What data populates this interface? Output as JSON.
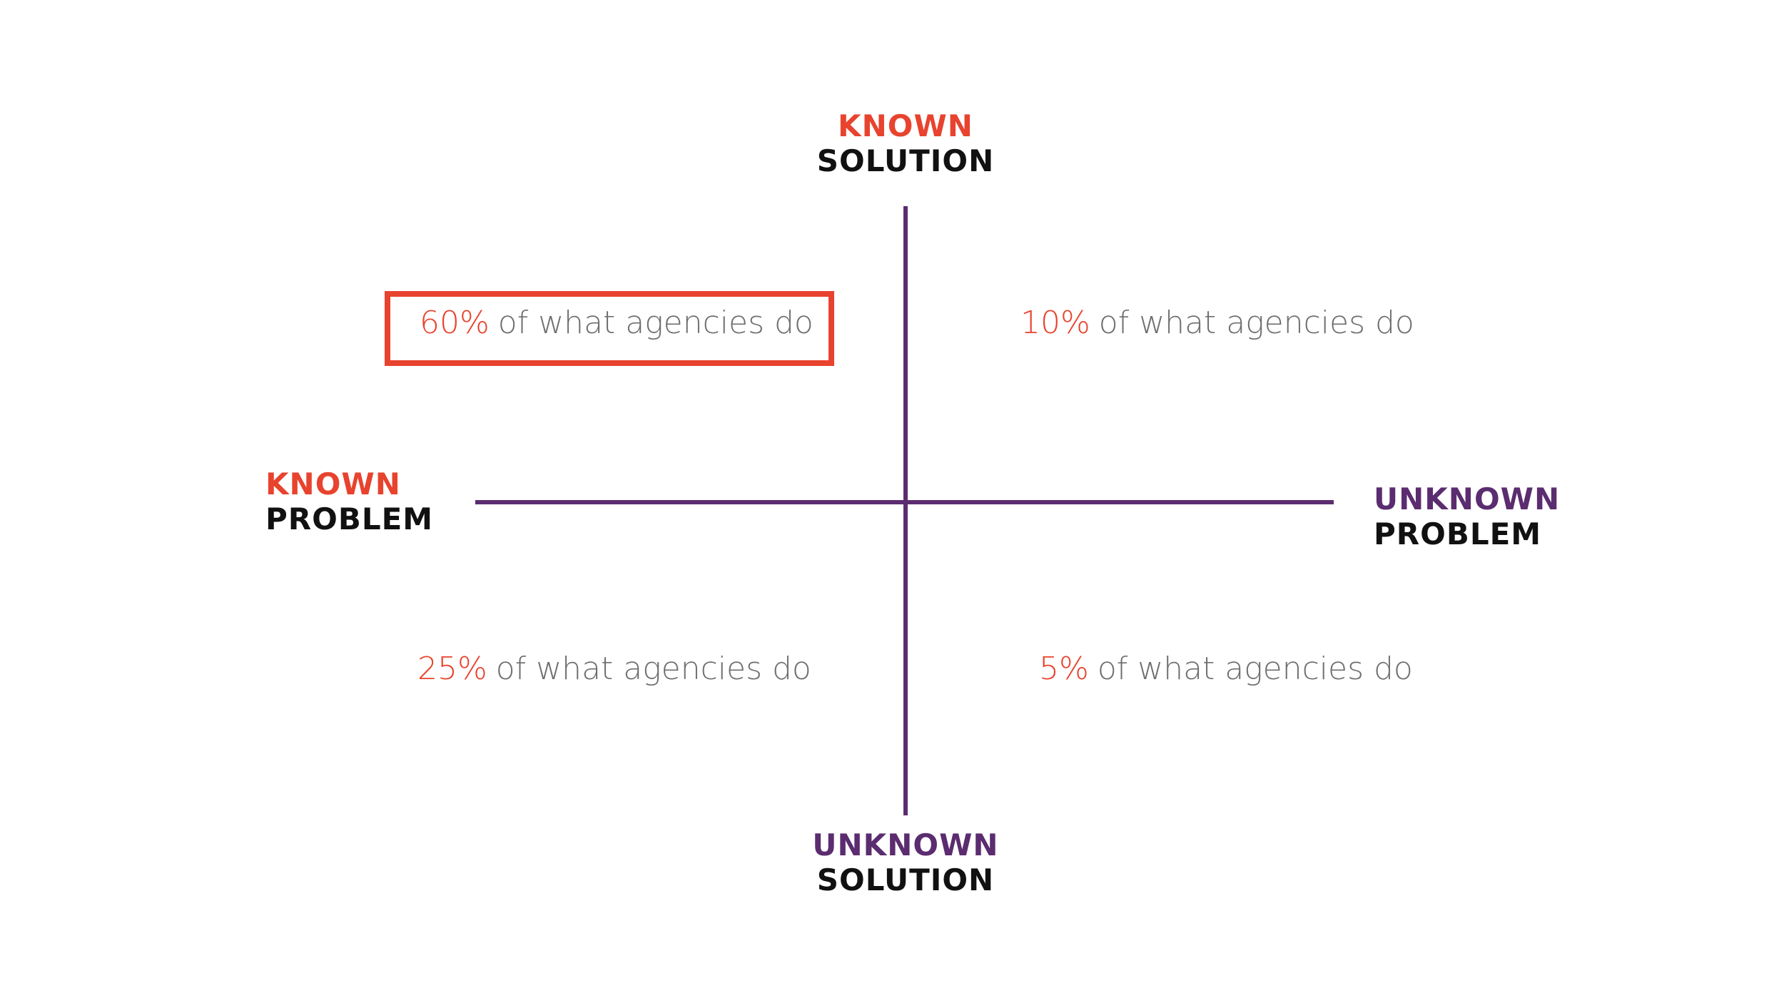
{
  "colors": {
    "known": "#e8432e",
    "unknown": "#5b2c6f",
    "axis": "#5b2c6f",
    "text_dark": "#111111",
    "text_gray": "#6e6e6e",
    "highlight": "#e8432e"
  },
  "axes": {
    "top": {
      "qualifier": "KNOWN",
      "noun": "SOLUTION"
    },
    "bottom": {
      "qualifier": "UNKNOWN",
      "noun": "SOLUTION"
    },
    "left": {
      "qualifier": "KNOWN",
      "noun": "PROBLEM"
    },
    "right": {
      "qualifier": "UNKNOWN",
      "noun": "PROBLEM"
    }
  },
  "quadrants": {
    "top_left": {
      "percent": "60%",
      "text": "of what agencies do",
      "highlighted": true
    },
    "top_right": {
      "percent": "10%",
      "text": "of what agencies do",
      "highlighted": false
    },
    "bottom_left": {
      "percent": "25%",
      "text": "of what agencies do",
      "highlighted": false
    },
    "bottom_right": {
      "percent": "5%",
      "text": "of what agencies do",
      "highlighted": false
    }
  }
}
